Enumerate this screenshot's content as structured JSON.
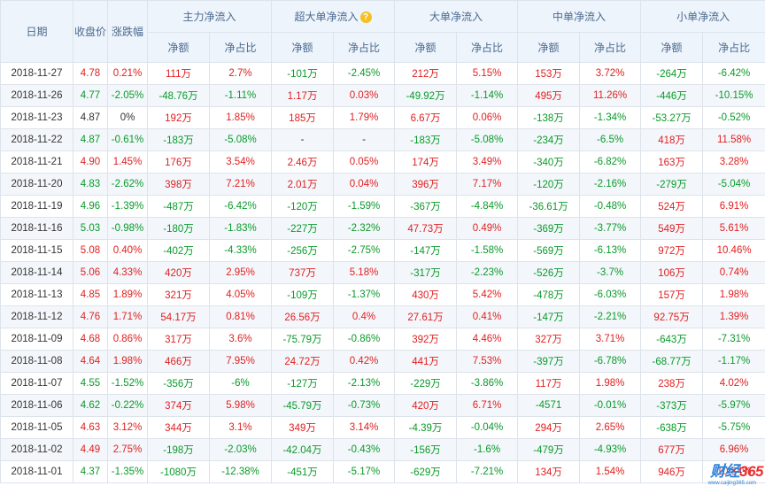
{
  "headers": {
    "date": "日期",
    "close": "收盘价",
    "change": "涨跌幅",
    "main": "主力净流入",
    "super": "超大单净流入",
    "large": "大单净流入",
    "medium": "中单净流入",
    "small": "小单净流入",
    "amount": "净额",
    "ratio": "净占比"
  },
  "rows": [
    [
      "2018-11-27",
      "4.78",
      "0.21%",
      "111万",
      "2.7%",
      "-101万",
      "-2.45%",
      "212万",
      "5.15%",
      "153万",
      "3.72%",
      "-264万",
      "-6.42%"
    ],
    [
      "2018-11-26",
      "4.77",
      "-2.05%",
      "-48.76万",
      "-1.11%",
      "1.17万",
      "0.03%",
      "-49.92万",
      "-1.14%",
      "495万",
      "11.26%",
      "-446万",
      "-10.15%"
    ],
    [
      "2018-11-23",
      "4.87",
      "0%",
      "192万",
      "1.85%",
      "185万",
      "1.79%",
      "6.67万",
      "0.06%",
      "-138万",
      "-1.34%",
      "-53.27万",
      "-0.52%"
    ],
    [
      "2018-11-22",
      "4.87",
      "-0.61%",
      "-183万",
      "-5.08%",
      "-",
      "-",
      "-183万",
      "-5.08%",
      "-234万",
      "-6.5%",
      "418万",
      "11.58%"
    ],
    [
      "2018-11-21",
      "4.90",
      "1.45%",
      "176万",
      "3.54%",
      "2.46万",
      "0.05%",
      "174万",
      "3.49%",
      "-340万",
      "-6.82%",
      "163万",
      "3.28%"
    ],
    [
      "2018-11-20",
      "4.83",
      "-2.62%",
      "398万",
      "7.21%",
      "2.01万",
      "0.04%",
      "396万",
      "7.17%",
      "-120万",
      "-2.16%",
      "-279万",
      "-5.04%"
    ],
    [
      "2018-11-19",
      "4.96",
      "-1.39%",
      "-487万",
      "-6.42%",
      "-120万",
      "-1.59%",
      "-367万",
      "-4.84%",
      "-36.61万",
      "-0.48%",
      "524万",
      "6.91%"
    ],
    [
      "2018-11-16",
      "5.03",
      "-0.98%",
      "-180万",
      "-1.83%",
      "-227万",
      "-2.32%",
      "47.73万",
      "0.49%",
      "-369万",
      "-3.77%",
      "549万",
      "5.61%"
    ],
    [
      "2018-11-15",
      "5.08",
      "0.40%",
      "-402万",
      "-4.33%",
      "-256万",
      "-2.75%",
      "-147万",
      "-1.58%",
      "-569万",
      "-6.13%",
      "972万",
      "10.46%"
    ],
    [
      "2018-11-14",
      "5.06",
      "4.33%",
      "420万",
      "2.95%",
      "737万",
      "5.18%",
      "-317万",
      "-2.23%",
      "-526万",
      "-3.7%",
      "106万",
      "0.74%"
    ],
    [
      "2018-11-13",
      "4.85",
      "1.89%",
      "321万",
      "4.05%",
      "-109万",
      "-1.37%",
      "430万",
      "5.42%",
      "-478万",
      "-6.03%",
      "157万",
      "1.98%"
    ],
    [
      "2018-11-12",
      "4.76",
      "1.71%",
      "54.17万",
      "0.81%",
      "26.56万",
      "0.4%",
      "27.61万",
      "0.41%",
      "-147万",
      "-2.21%",
      "92.75万",
      "1.39%"
    ],
    [
      "2018-11-09",
      "4.68",
      "0.86%",
      "317万",
      "3.6%",
      "-75.79万",
      "-0.86%",
      "392万",
      "4.46%",
      "327万",
      "3.71%",
      "-643万",
      "-7.31%"
    ],
    [
      "2018-11-08",
      "4.64",
      "1.98%",
      "466万",
      "7.95%",
      "24.72万",
      "0.42%",
      "441万",
      "7.53%",
      "-397万",
      "-6.78%",
      "-68.77万",
      "-1.17%"
    ],
    [
      "2018-11-07",
      "4.55",
      "-1.52%",
      "-356万",
      "-6%",
      "-127万",
      "-2.13%",
      "-229万",
      "-3.86%",
      "117万",
      "1.98%",
      "238万",
      "4.02%"
    ],
    [
      "2018-11-06",
      "4.62",
      "-0.22%",
      "374万",
      "5.98%",
      "-45.79万",
      "-0.73%",
      "420万",
      "6.71%",
      "-4571",
      "-0.01%",
      "-373万",
      "-5.97%"
    ],
    [
      "2018-11-05",
      "4.63",
      "3.12%",
      "344万",
      "3.1%",
      "349万",
      "3.14%",
      "-4.39万",
      "-0.04%",
      "294万",
      "2.65%",
      "-638万",
      "-5.75%"
    ],
    [
      "2018-11-02",
      "4.49",
      "2.75%",
      "-198万",
      "-2.03%",
      "-42.04万",
      "-0.43%",
      "-156万",
      "-1.6%",
      "-479万",
      "-4.93%",
      "677万",
      "6.96%"
    ],
    [
      "2018-11-01",
      "4.37",
      "-1.35%",
      "-1080万",
      "-12.38%",
      "-451万",
      "-5.17%",
      "-629万",
      "-7.21%",
      "134万",
      "1.54%",
      "946万",
      "10.84%"
    ]
  ],
  "colors": {
    "up": "#e02020",
    "down": "#0a9a2a",
    "flat": "#333333"
  },
  "logo": {
    "text_a": "财经",
    "text_b": "365",
    "sub": "www.caijing365.com"
  }
}
